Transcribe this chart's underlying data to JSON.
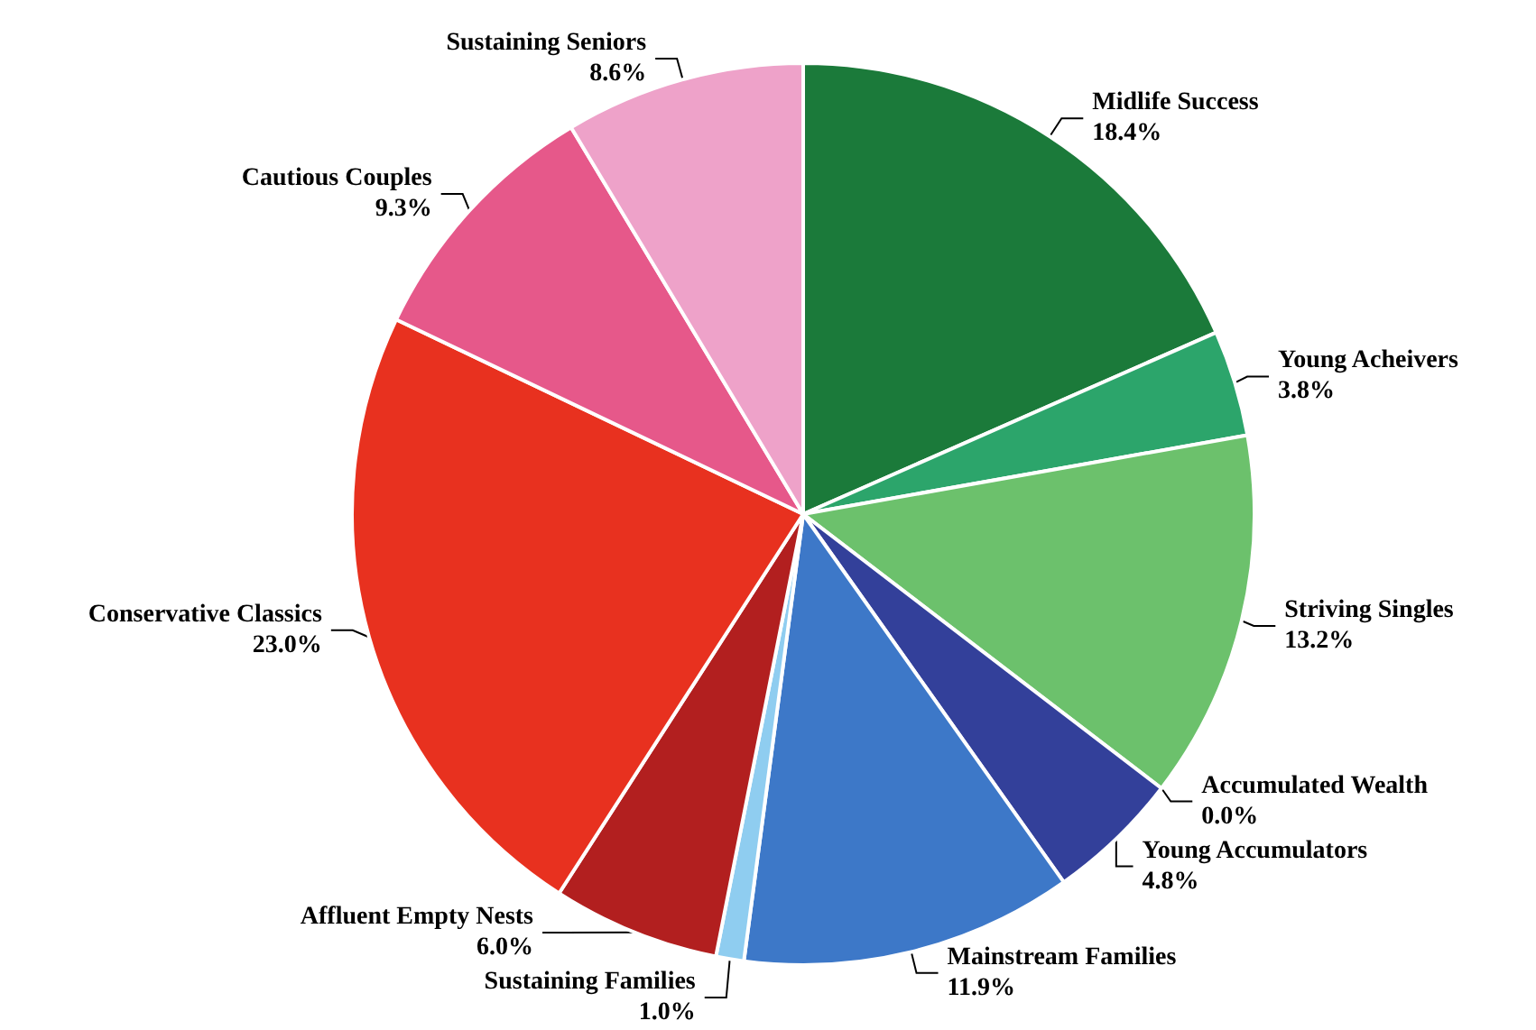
{
  "chart_data": {
    "type": "pie",
    "categories": [
      "Midlife Success",
      "Young Acheivers",
      "Striving Singles",
      "Accumulated Wealth",
      "Young Accumulators",
      "Mainstream Families",
      "Sustaining Families",
      "Affluent Empty Nests",
      "Conservative Classics",
      "Cautious Couples",
      "Sustaining Seniors"
    ],
    "values": [
      18.4,
      3.8,
      13.2,
      0.0,
      4.8,
      11.9,
      1.0,
      6.0,
      23.0,
      9.3,
      8.6
    ],
    "value_labels": [
      "18.4%",
      "3.8%",
      "13.2%",
      "0.0%",
      "4.8%",
      "11.9%",
      "1.0%",
      "6.0%",
      "23.0%",
      "9.3%",
      "8.6%"
    ],
    "colors": [
      "#1b7a3a",
      "#2ca56b",
      "#6cc16c",
      "#2b4c9c",
      "#33409a",
      "#3d78c8",
      "#8fcdf0",
      "#b21f1f",
      "#e8311f",
      "#e6588a",
      "#eea2c9"
    ]
  }
}
